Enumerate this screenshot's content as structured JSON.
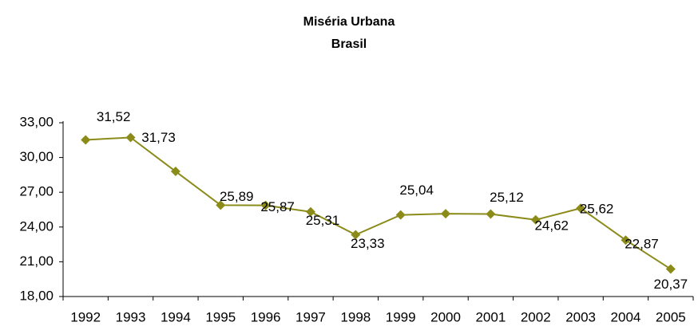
{
  "chart_data": {
    "type": "line",
    "title": "Miséria Urbana",
    "subtitle": "Brasil",
    "categories": [
      "1992",
      "1993",
      "1994",
      "1995",
      "1996",
      "1997",
      "1998",
      "1999",
      "2000",
      "2001",
      "2002",
      "2003",
      "2004",
      "2005"
    ],
    "values": [
      31.52,
      31.73,
      28.8,
      25.89,
      25.87,
      25.31,
      23.33,
      25.04,
      25.15,
      25.12,
      24.62,
      25.62,
      22.87,
      20.37
    ],
    "value_labels": [
      "31,52",
      "31,73",
      null,
      "25,89",
      "25,87",
      "25,31",
      "23,33",
      "25,04",
      null,
      "25,12",
      "24,62",
      "25,62",
      "22,87",
      "20,37"
    ],
    "color": "#8b8b1a",
    "ylim": [
      18,
      33
    ],
    "yticks": [
      {
        "value": 18,
        "label": "18,00"
      },
      {
        "value": 21,
        "label": "21,00"
      },
      {
        "value": 24,
        "label": "24,00"
      },
      {
        "value": 27,
        "label": "27,00"
      },
      {
        "value": 30,
        "label": "30,00"
      },
      {
        "value": 33,
        "label": "33,00"
      }
    ]
  }
}
